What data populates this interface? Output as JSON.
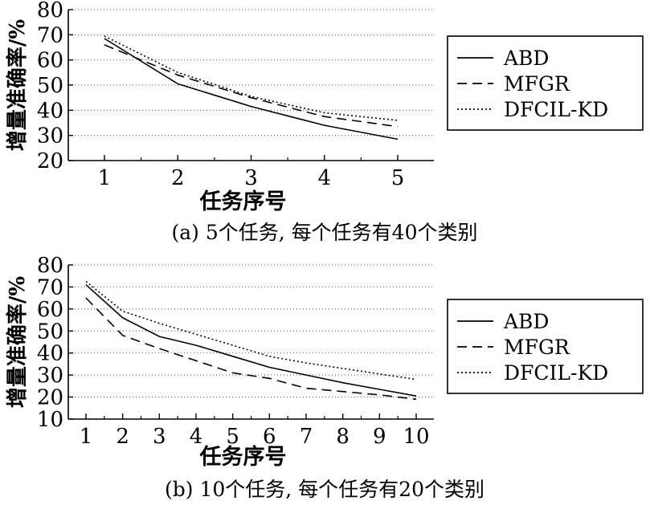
{
  "chart_data": [
    {
      "type": "line",
      "caption": "(a) 5个任务, 每个任务有40个类别",
      "xlabel": "任务序号",
      "ylabel": "增量准确率/%",
      "x": [
        1,
        2,
        3,
        4,
        5
      ],
      "xticks": [
        "1",
        "2",
        "3",
        "4",
        "5"
      ],
      "ylim": [
        20,
        80
      ],
      "yticks": [
        "20",
        "30",
        "40",
        "50",
        "60",
        "70",
        "80"
      ],
      "grid": "horizontal-dotted",
      "legend_position": "right",
      "series": [
        {
          "name": "ABD",
          "style": "solid",
          "values": [
            68.5,
            50.5,
            41.5,
            34.0,
            28.5
          ]
        },
        {
          "name": "MFGR",
          "style": "dashed",
          "values": [
            66.0,
            54.0,
            45.0,
            37.5,
            33.5
          ]
        },
        {
          "name": "DFCIL-KD",
          "style": "dotted",
          "values": [
            69.5,
            55.0,
            45.5,
            39.0,
            36.0
          ]
        }
      ]
    },
    {
      "type": "line",
      "caption": "(b) 10个任务, 每个任务有20个类别",
      "xlabel": "任务序号",
      "ylabel": "增量准确率/%",
      "x": [
        1,
        2,
        3,
        4,
        5,
        6,
        7,
        8,
        9,
        10
      ],
      "xticks": [
        "1",
        "2",
        "3",
        "4",
        "5",
        "6",
        "7",
        "8",
        "9",
        "10"
      ],
      "ylim": [
        10,
        80
      ],
      "yticks": [
        "10",
        "20",
        "30",
        "40",
        "50",
        "60",
        "70",
        "80"
      ],
      "grid": "horizontal-dotted",
      "legend_position": "right",
      "series": [
        {
          "name": "ABD",
          "style": "solid",
          "values": [
            71.0,
            56.0,
            47.5,
            43.5,
            38.5,
            33.5,
            30.0,
            26.5,
            23.5,
            20.5
          ]
        },
        {
          "name": "MFGR",
          "style": "dashed",
          "values": [
            65.0,
            48.0,
            42.0,
            36.5,
            31.0,
            28.5,
            24.0,
            22.5,
            21.0,
            19.0
          ]
        },
        {
          "name": "DFCIL-KD",
          "style": "dotted",
          "values": [
            72.5,
            59.0,
            53.5,
            48.5,
            43.5,
            38.5,
            35.5,
            33.0,
            30.5,
            28.0
          ]
        }
      ]
    }
  ]
}
